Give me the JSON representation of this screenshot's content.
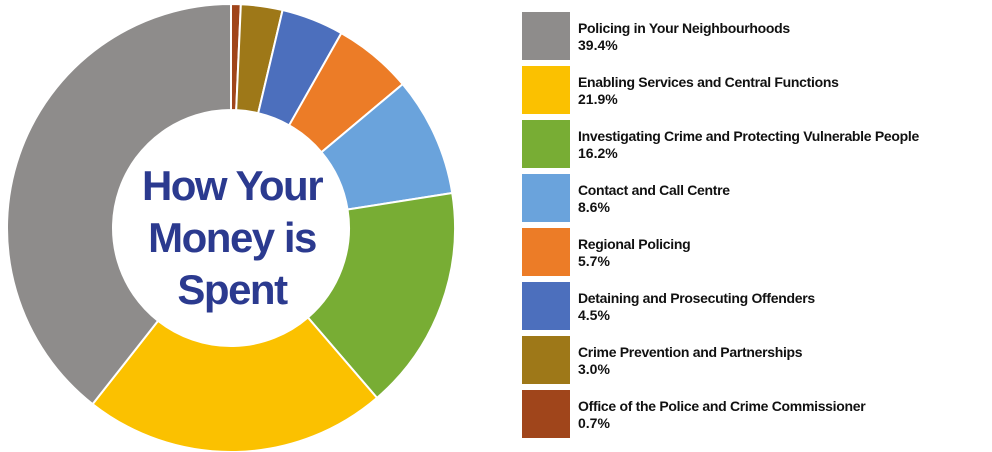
{
  "chart_data": {
    "type": "pie",
    "title": "How Your Money is Spent",
    "title_lines": [
      "How Your",
      "Money is",
      "Spent"
    ],
    "title_color": "#2b3a8f",
    "unit": "%",
    "categories": [
      "Office of the Police and Crime Commissioner",
      "Crime Prevention and Partnerships",
      "Detaining and Prosecuting Offenders",
      "Regional Policing",
      "Contact and Call Centre",
      "Investigating Crime and Protecting Vulnerable People",
      "Enabling Services and Central Functions",
      "Policing in Your Neighbourhoods"
    ],
    "values": [
      0.7,
      3.0,
      4.5,
      5.7,
      8.6,
      16.2,
      21.9,
      39.4
    ],
    "colors": [
      "#a0451b",
      "#9e7818",
      "#4c6fbd",
      "#ec7c27",
      "#6aa3dc",
      "#78ad34",
      "#fbc100",
      "#8e8c8b"
    ],
    "legend": [
      {
        "label": "Policing in Your Neighbourhoods",
        "value": "39.4%",
        "color": "#8e8c8b"
      },
      {
        "label": "Enabling Services and Central Functions",
        "value": "21.9%",
        "color": "#fbc100"
      },
      {
        "label": "Investigating Crime and Protecting Vulnerable People",
        "value": "16.2%",
        "color": "#78ad34"
      },
      {
        "label": "Contact and Call Centre",
        "value": "8.6%",
        "color": "#6aa3dc"
      },
      {
        "label": "Regional Policing",
        "value": "5.7%",
        "color": "#ec7c27"
      },
      {
        "label": "Detaining and Prosecuting Offenders",
        "value": "4.5%",
        "color": "#4c6fbd"
      },
      {
        "label": "Crime Prevention and Partnerships",
        "value": "3.0%",
        "color": "#9e7818"
      },
      {
        "label": "Office of the Police and Crime Commissioner",
        "value": "0.7%",
        "color": "#a0451b"
      }
    ],
    "legend_position": "right"
  }
}
